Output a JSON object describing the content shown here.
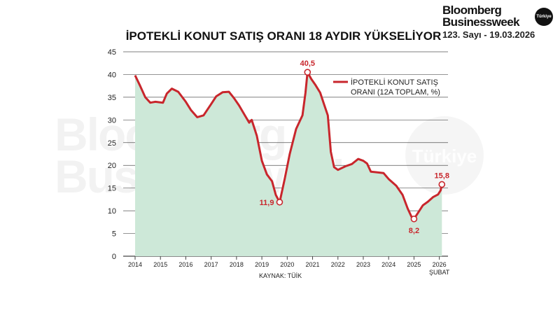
{
  "brand": {
    "line1": "Bloomberg",
    "line2": "Businessweek",
    "badge": "Türkiye",
    "issue": "123. Sayı - 19.03.2026",
    "watermark_line1": "Bloomberg",
    "watermark_line2": "Businessweek",
    "watermark_badge": "Türkiye"
  },
  "colors": {
    "line": "#c8262c",
    "area": "#cde8d8",
    "label": "#c8262c"
  },
  "chart_data": {
    "type": "area",
    "title": "İPOTEKLİ KONUT SATIŞ ORANI 18 AYDIR YÜKSELİYOR",
    "source": "KAYNAK: TÜİK",
    "legend": {
      "label_line1": "İPOTEKLİ KONUT SATIŞ",
      "label_line2": "ORANI (12A TOPLAM, %)",
      "position": "top-right"
    },
    "x_ticks": [
      "2014",
      "2015",
      "2016",
      "2017",
      "2018",
      "2019",
      "2020",
      "2021",
      "2022",
      "2023",
      "2024",
      "2025",
      "2026"
    ],
    "x_tick_last_sub": "ŞUBAT",
    "y_ticks": [
      "0",
      "5",
      "10",
      "15",
      "20",
      "25",
      "30",
      "35",
      "40",
      "45"
    ],
    "ylim": [
      0,
      45
    ],
    "xlim": [
      2014.0,
      2026.1
    ],
    "grid": true,
    "series": [
      {
        "points": [
          [
            2014.0,
            39.8
          ],
          [
            2014.2,
            37.5
          ],
          [
            2014.4,
            35.0
          ],
          [
            2014.6,
            33.8
          ],
          [
            2014.8,
            34.0
          ],
          [
            2015.1,
            33.8
          ],
          [
            2015.25,
            35.8
          ],
          [
            2015.45,
            36.9
          ],
          [
            2015.7,
            36.2
          ],
          [
            2016.0,
            34.0
          ],
          [
            2016.2,
            32.2
          ],
          [
            2016.45,
            30.6
          ],
          [
            2016.7,
            31.0
          ],
          [
            2017.0,
            33.5
          ],
          [
            2017.2,
            35.2
          ],
          [
            2017.45,
            36.1
          ],
          [
            2017.7,
            36.2
          ],
          [
            2017.9,
            34.8
          ],
          [
            2018.1,
            33.2
          ],
          [
            2018.35,
            30.8
          ],
          [
            2018.5,
            29.4
          ],
          [
            2018.6,
            30.0
          ],
          [
            2018.8,
            26.5
          ],
          [
            2019.0,
            21.0
          ],
          [
            2019.2,
            18.0
          ],
          [
            2019.4,
            16.5
          ],
          [
            2019.55,
            13.5
          ],
          [
            2019.7,
            11.9
          ],
          [
            2019.9,
            17.0
          ],
          [
            2020.1,
            22.5
          ],
          [
            2020.35,
            28.0
          ],
          [
            2020.6,
            31.0
          ],
          [
            2020.72,
            36.0
          ],
          [
            2020.8,
            40.5
          ],
          [
            2020.95,
            39.0
          ],
          [
            2021.1,
            37.8
          ],
          [
            2021.3,
            36.0
          ],
          [
            2021.45,
            33.5
          ],
          [
            2021.6,
            31.0
          ],
          [
            2021.72,
            23.0
          ],
          [
            2021.85,
            19.6
          ],
          [
            2022.0,
            19.0
          ],
          [
            2022.3,
            19.8
          ],
          [
            2022.55,
            20.3
          ],
          [
            2022.8,
            21.4
          ],
          [
            2023.0,
            21.0
          ],
          [
            2023.15,
            20.4
          ],
          [
            2023.3,
            18.6
          ],
          [
            2023.5,
            18.5
          ],
          [
            2023.8,
            18.3
          ],
          [
            2024.0,
            17.0
          ],
          [
            2024.3,
            15.5
          ],
          [
            2024.55,
            13.5
          ],
          [
            2024.75,
            10.5
          ],
          [
            2024.9,
            8.7
          ],
          [
            2025.0,
            8.2
          ],
          [
            2025.15,
            9.5
          ],
          [
            2025.35,
            11.2
          ],
          [
            2025.55,
            12.0
          ],
          [
            2025.75,
            13.0
          ],
          [
            2025.95,
            13.6
          ],
          [
            2026.05,
            14.5
          ],
          [
            2026.1,
            15.8
          ]
        ]
      }
    ],
    "annotations": [
      {
        "text": "40,5",
        "x": 2020.8,
        "y": 40.5,
        "placement": "above"
      },
      {
        "text": "11,9",
        "x": 2019.7,
        "y": 11.9,
        "placement": "left"
      },
      {
        "text": "8,2",
        "x": 2025.0,
        "y": 8.2,
        "placement": "below"
      },
      {
        "text": "15,8",
        "x": 2026.1,
        "y": 15.8,
        "placement": "above"
      }
    ]
  }
}
